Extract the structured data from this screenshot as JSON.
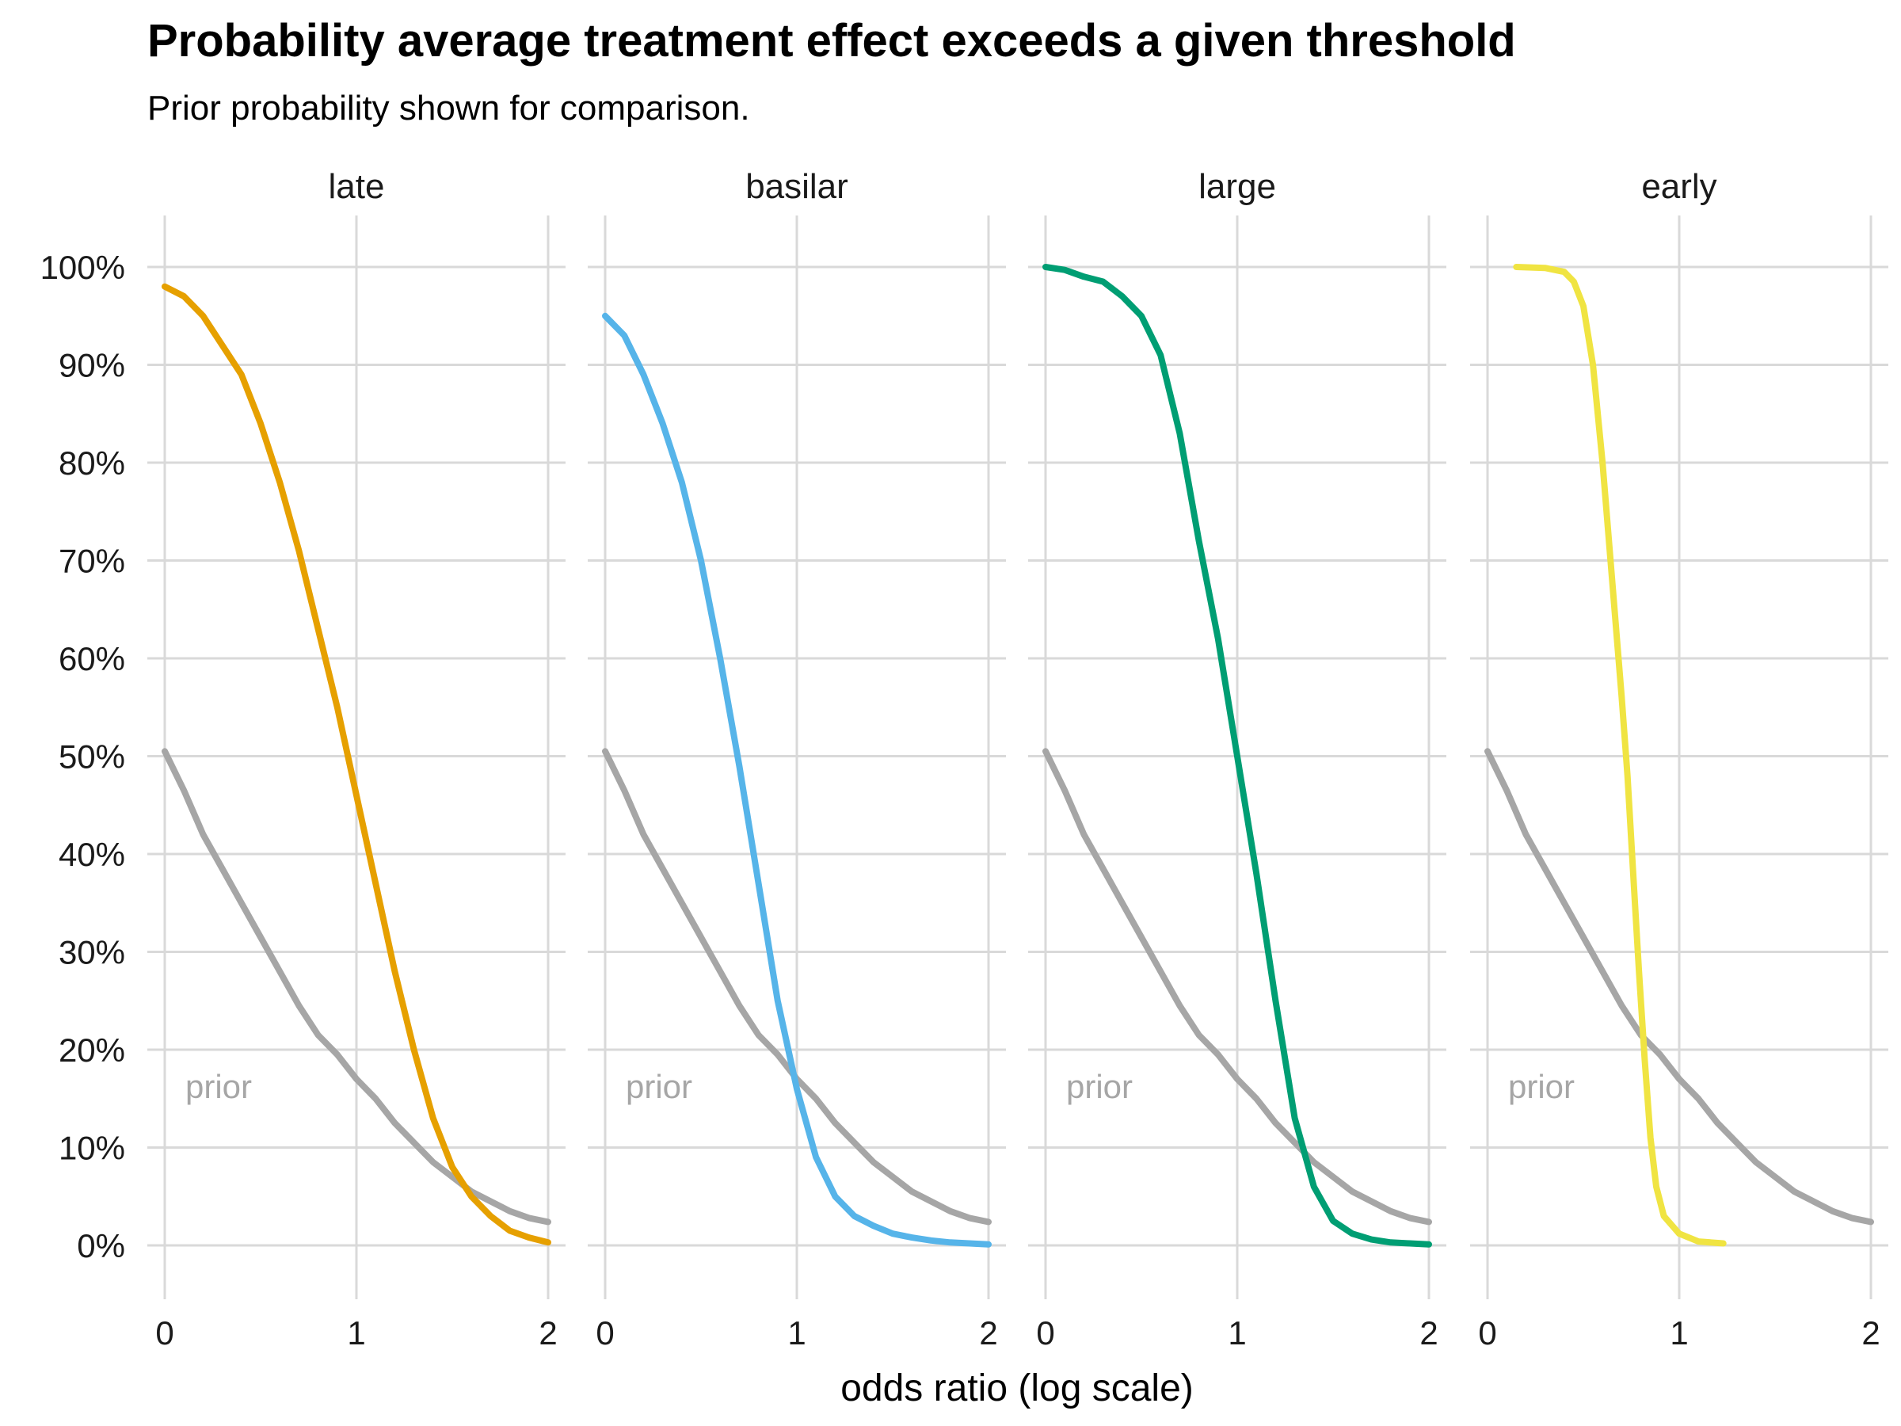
{
  "chart_data": {
    "type": "line",
    "title": "Probability average treatment effect exceeds a given threshold",
    "subtitle": "Prior probability shown for comparison.",
    "xlabel": "odds ratio (log scale)",
    "ylabel": "",
    "xlim": [
      0,
      2
    ],
    "ylim": [
      0,
      1
    ],
    "x_ticks": [
      0,
      1,
      2
    ],
    "y_ticks": [
      0,
      0.1,
      0.2,
      0.3,
      0.4,
      0.5,
      0.6,
      0.7,
      0.8,
      0.9,
      1.0
    ],
    "y_tick_labels": [
      "0%",
      "10%",
      "20%",
      "30%",
      "40%",
      "50%",
      "60%",
      "70%",
      "80%",
      "90%",
      "100%"
    ],
    "grid": true,
    "prior_label": "prior",
    "prior_color": "#a6a6a6",
    "prior": {
      "x": [
        0,
        0.1,
        0.2,
        0.3,
        0.4,
        0.5,
        0.6,
        0.7,
        0.8,
        0.9,
        1.0,
        1.1,
        1.2,
        1.3,
        1.4,
        1.5,
        1.6,
        1.7,
        1.8,
        1.9,
        2.0
      ],
      "y": [
        0.505,
        0.465,
        0.42,
        0.385,
        0.35,
        0.315,
        0.28,
        0.245,
        0.215,
        0.195,
        0.17,
        0.15,
        0.125,
        0.105,
        0.085,
        0.07,
        0.055,
        0.045,
        0.035,
        0.028,
        0.024
      ]
    },
    "panels": [
      {
        "name": "late",
        "color": "#e6a000",
        "x": [
          0,
          0.1,
          0.2,
          0.3,
          0.4,
          0.5,
          0.6,
          0.7,
          0.8,
          0.9,
          1.0,
          1.1,
          1.2,
          1.3,
          1.4,
          1.5,
          1.6,
          1.7,
          1.8,
          1.9,
          2.0
        ],
        "y": [
          0.98,
          0.97,
          0.95,
          0.92,
          0.89,
          0.84,
          0.78,
          0.71,
          0.63,
          0.55,
          0.46,
          0.37,
          0.28,
          0.2,
          0.13,
          0.08,
          0.05,
          0.03,
          0.015,
          0.008,
          0.003
        ]
      },
      {
        "name": "basilar",
        "color": "#56b4e9",
        "x": [
          0,
          0.1,
          0.2,
          0.3,
          0.4,
          0.5,
          0.6,
          0.7,
          0.8,
          0.9,
          1.0,
          1.1,
          1.2,
          1.3,
          1.4,
          1.5,
          1.6,
          1.7,
          1.8,
          1.9,
          2.0
        ],
        "y": [
          0.95,
          0.93,
          0.89,
          0.84,
          0.78,
          0.7,
          0.6,
          0.49,
          0.37,
          0.25,
          0.16,
          0.09,
          0.05,
          0.03,
          0.02,
          0.012,
          0.008,
          0.005,
          0.003,
          0.002,
          0.001
        ]
      },
      {
        "name": "large",
        "color": "#009e73",
        "x": [
          0,
          0.1,
          0.2,
          0.3,
          0.4,
          0.5,
          0.6,
          0.7,
          0.8,
          0.9,
          1.0,
          1.1,
          1.2,
          1.3,
          1.4,
          1.5,
          1.6,
          1.7,
          1.8,
          1.9,
          2.0
        ],
        "y": [
          1.0,
          0.997,
          0.99,
          0.985,
          0.97,
          0.95,
          0.91,
          0.83,
          0.72,
          0.62,
          0.5,
          0.38,
          0.25,
          0.13,
          0.06,
          0.025,
          0.012,
          0.006,
          0.003,
          0.002,
          0.001
        ]
      },
      {
        "name": "early",
        "color": "#f0e442",
        "x": [
          0.15,
          0.3,
          0.4,
          0.45,
          0.5,
          0.55,
          0.6,
          0.65,
          0.7,
          0.73,
          0.76,
          0.79,
          0.82,
          0.85,
          0.88,
          0.92,
          1.0,
          1.1,
          1.23
        ],
        "y": [
          1.0,
          0.999,
          0.995,
          0.985,
          0.96,
          0.9,
          0.8,
          0.68,
          0.56,
          0.48,
          0.38,
          0.28,
          0.19,
          0.11,
          0.06,
          0.03,
          0.012,
          0.004,
          0.002
        ]
      }
    ]
  }
}
